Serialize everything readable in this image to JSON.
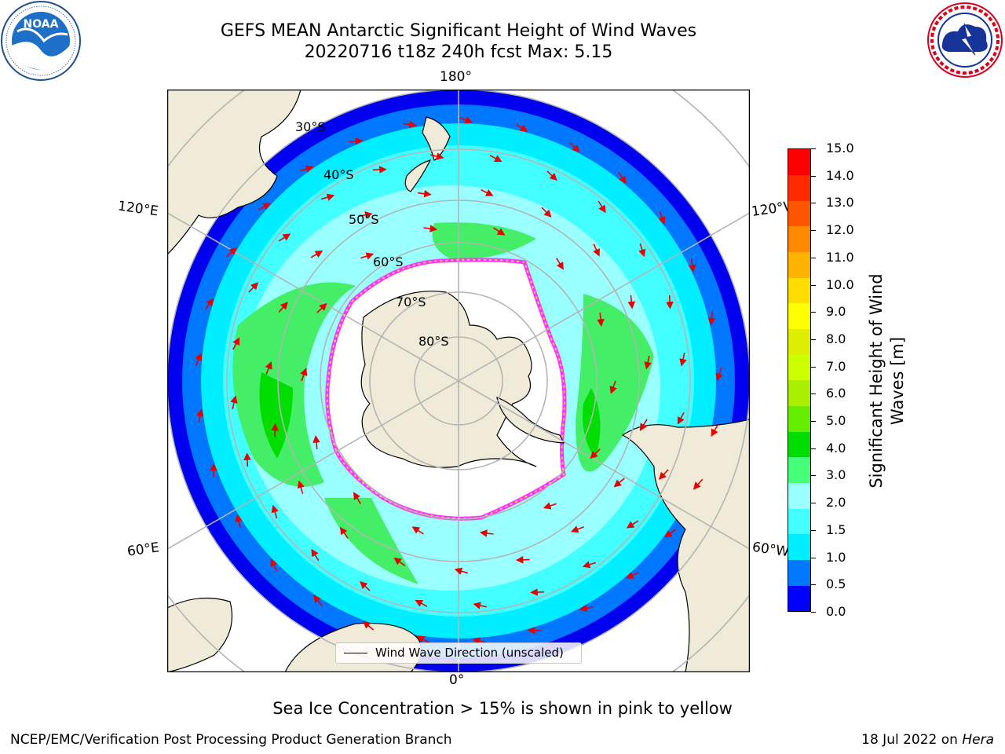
{
  "title": {
    "line1": "GEFS MEAN Antarctic Significant Height of Wind Waves",
    "line2": "20220716 t18z 240h fcst   Max: 5.15"
  },
  "logos": {
    "left": {
      "name": "NOAA",
      "icon": "noaa-logo",
      "text": "NOAA",
      "ring_text": "NATIONAL OCEANIC AND ATMOSPHERIC ADMINISTRATION · U.S. DEPARTMENT OF COMMERCE"
    },
    "right": {
      "name": "National Weather Service",
      "icon": "nws-logo",
      "ring_text": "NATIONAL WEATHER SERVICE"
    }
  },
  "map": {
    "projection": "south-polar-stereographic",
    "longitude_labels": {
      "top": "180°",
      "bottom": "0°",
      "upper_left": "120°E",
      "upper_right": "120°W",
      "lower_left": "60°E",
      "lower_right": "60°W"
    },
    "latitude_labels": [
      "30°S",
      "40°S",
      "50°S",
      "60°S",
      "70°S",
      "80°S"
    ],
    "legend": "Wind Wave Direction (unscaled)",
    "colors": {
      "land": "#efebd8",
      "coastline": "#000000",
      "grid": "#b4b4b4",
      "arrow": "#e60000",
      "sea_ice": [
        "#ff33ff",
        "#ff99cc",
        "#ffcc66",
        "#ffee88"
      ]
    }
  },
  "colorbar": {
    "label_line1": "Significant Height of Wind",
    "label_line2": "Waves [m]",
    "ticks": [
      "15.0",
      "14.0",
      "13.0",
      "12.0",
      "11.0",
      "10.0",
      "9.0",
      "8.0",
      "7.0",
      "6.0",
      "5.0",
      "4.0",
      "3.0",
      "2.0",
      "1.5",
      "1.0",
      "0.5",
      "0.0"
    ],
    "colors": [
      "#0000ff",
      "#0077ff",
      "#00eeff",
      "#44ffff",
      "#99ffff",
      "#44ff77",
      "#00dd00",
      "#66ee00",
      "#aaee00",
      "#ccff00",
      "#ddee00",
      "#ffff00",
      "#ffdd00",
      "#ffb300",
      "#ff8800",
      "#ff5500",
      "#ff2a00",
      "#ff0000"
    ]
  },
  "footer": {
    "note": "Sea Ice Concentration > 15% is shown in pink to yellow",
    "credit_left": "NCEP/EMC/Verification Post Processing Product Generation Branch",
    "credit_right_date": "18 Jul 2022 on",
    "credit_right_host": "Hera"
  }
}
